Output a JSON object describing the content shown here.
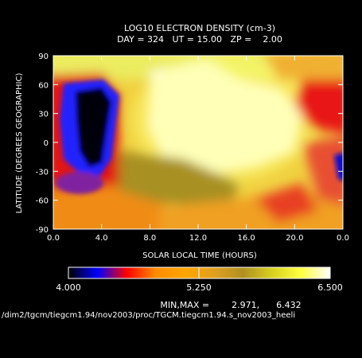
{
  "chart_data": {
    "type": "heatmap",
    "title": "LOG10 ELECTRON DENSITY (cm-3)",
    "subtitle": "DAY = 324   UT = 15.00   ZP =    2.00",
    "xlabel": "SOLAR LOCAL TIME (HOURS)",
    "ylabel": "LATITUDE (DEGREES GEOGRAPHIC)",
    "xlim": [
      0,
      24
    ],
    "ylim": [
      -90,
      90
    ],
    "x_ticks": [
      "0.0",
      "4.0",
      "8.0",
      "12.0",
      "16.0",
      "20.0",
      "0.0"
    ],
    "x_tick_values": [
      0,
      4,
      8,
      12,
      16,
      20,
      24
    ],
    "y_ticks": [
      "90",
      "60",
      "30",
      "0",
      "-30",
      "-60",
      "-90"
    ],
    "y_tick_values": [
      90,
      60,
      30,
      0,
      -30,
      -60,
      -90
    ],
    "colorbar": {
      "min_label": "4.000",
      "mid_label": "5.250",
      "max_label": "6.500",
      "range": [
        4.0,
        6.5
      ],
      "colors": [
        "#000000",
        "#0000ff",
        "#ff0000",
        "#ff8c00",
        "#ffa500",
        "#e0a020",
        "#b09020",
        "#d8d020",
        "#ffff40",
        "#ffffff"
      ]
    },
    "minmax_text": "MIN,MAX =        2.971,      6.432",
    "file_path": "/dim2/tgcm/tiegcm1.94/nov2003/proc/TGCM.tiegcm1.94.s_nov2003_heeli",
    "grid": false,
    "value_description": "log10 electron density field over local time (hours) and latitude (degrees)"
  }
}
